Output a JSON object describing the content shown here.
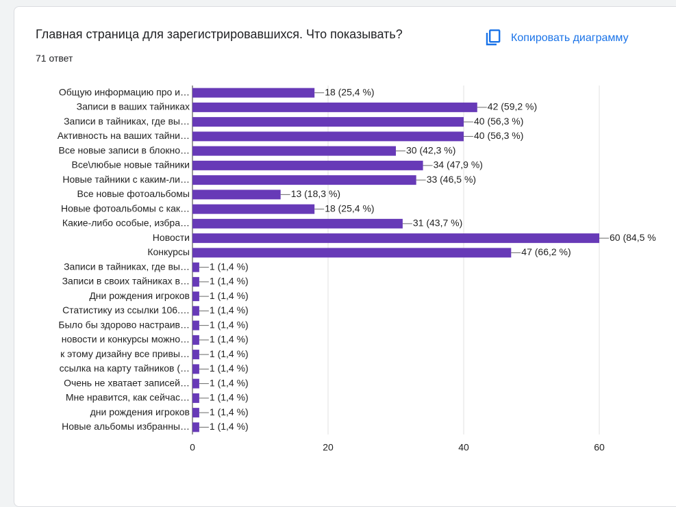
{
  "copy_button": "Копировать диаграмму",
  "chart_data": {
    "type": "hbar",
    "title": "Главная страница для зарегистрировавшихся. Что показывать?",
    "subtitle": "71 ответ",
    "categories": [
      "Общую информацию про и…",
      "Записи в ваших тайниках",
      "Записи в тайниках, где вы…",
      "Активность на ваших тайни…",
      "Все новые записи в блокно…",
      "Все\\любые новые тайники",
      "Новые тайники с каким-ли…",
      "Все новые фотоальбомы",
      "Новые фотоальбомы с как…",
      "Какие-либо особые, избра…",
      "Новости",
      "Конкурсы",
      "Записи в тайниках, где вы…",
      "Записи в своих тайниках в…",
      "Дни рождения игроков",
      "Статистику из ссылки 106.…",
      "Было бы здорово настраив…",
      "новости и конкурсы можно…",
      "к этому дизайну все привы…",
      "ссылка на карту тайников (…",
      "Очень не хватает записей…",
      "Мне нравится, как сейчас…",
      "дни рождения игроков",
      "Новые альбомы избранны…"
    ],
    "values": [
      18,
      42,
      40,
      40,
      30,
      34,
      33,
      13,
      18,
      31,
      60,
      47,
      1,
      1,
      1,
      1,
      1,
      1,
      1,
      1,
      1,
      1,
      1,
      1
    ],
    "value_labels": [
      "18 (25,4 %)",
      "42 (59,2 %)",
      "40 (56,3 %)",
      "40 (56,3 %)",
      "30 (42,3 %)",
      "34 (47,9 %)",
      "33 (46,5 %)",
      "13 (18,3 %)",
      "18 (25,4 %)",
      "31 (43,7 %)",
      "60 (84,5 %",
      "47 (66,2 %)",
      "1 (1,4 %)",
      "1 (1,4 %)",
      "1 (1,4 %)",
      "1 (1,4 %)",
      "1 (1,4 %)",
      "1 (1,4 %)",
      "1 (1,4 %)",
      "1 (1,4 %)",
      "1 (1,4 %)",
      "1 (1,4 %)",
      "1 (1,4 %)",
      "1 (1,4 %)"
    ],
    "color": "#673ab7",
    "xlim": [
      0,
      60
    ],
    "xticks": [
      0,
      20,
      40,
      60
    ],
    "grid": true
  }
}
